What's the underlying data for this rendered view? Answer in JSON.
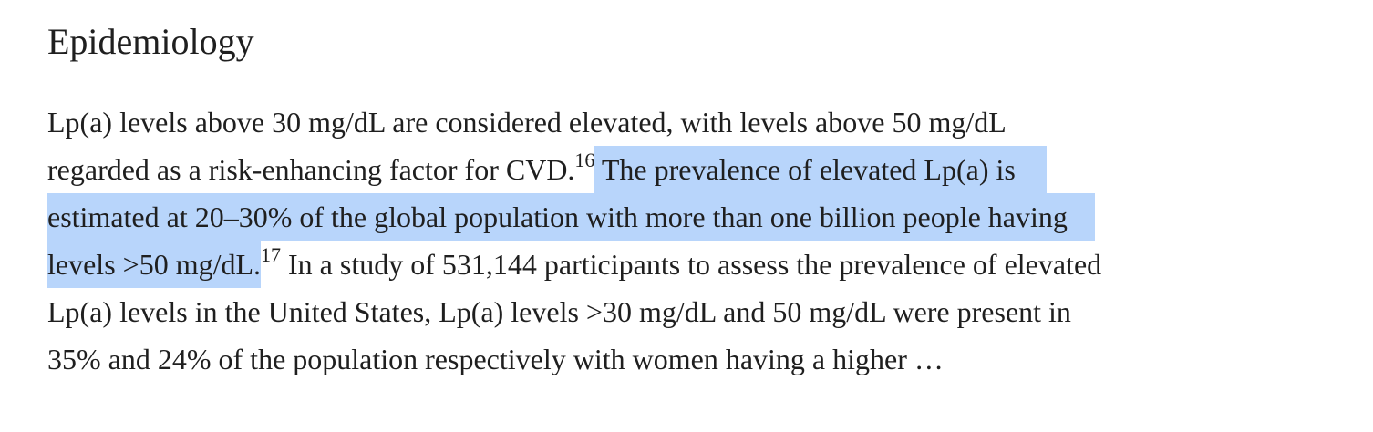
{
  "section": {
    "heading": "Epidemiology"
  },
  "paragraph": {
    "line1": "Lp(a) levels above 30 mg/dL are considered elevated, with levels above 50 mg/dL",
    "line2_plain": "regarded as a risk-enhancing factor for CVD.",
    "ref16": "16",
    "line2_selected": " The prevalence of elevated Lp(a) is",
    "line3_selected": "estimated at 20–30% of the global population with more than one billion people having",
    "line4_selected": "levels >50 mg/dL.",
    "ref17": "17",
    "line4_plain": " In a study of 531,144 participants to assess the prevalence of elevated",
    "line5": "Lp(a) levels in the United States, Lp(a) levels >30 mg/dL and 50 mg/dL were present in",
    "line6": "35% and 24% of the population respectively with women having a higher …"
  },
  "colors": {
    "text": "#1f1f1f",
    "selection": "#b8d5fb",
    "background": "#ffffff"
  }
}
